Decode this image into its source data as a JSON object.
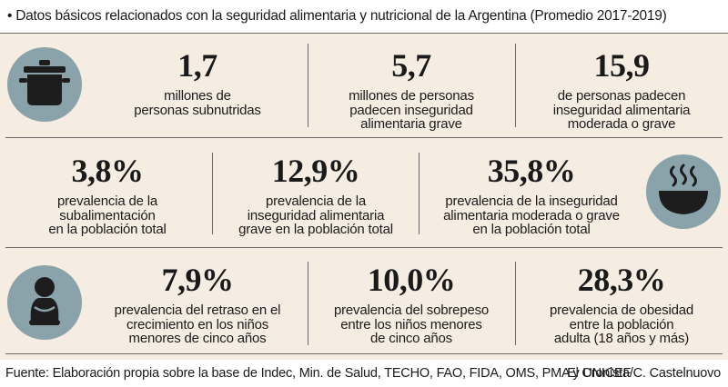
{
  "header": {
    "title": "• Datos básicos relacionados con la seguridad alimentaria y nutricional de la Argentina (Promedio 2017-2019)"
  },
  "icons": {
    "row1": "cooking-pot-icon",
    "row2": "steaming-bowl-icon",
    "row3": "sitting-child-icon",
    "circle_color": "#8aa3ab",
    "background_color": "#f6ede2"
  },
  "stats": [
    {
      "value": "1,7",
      "lines": [
        "millones de",
        "personas subnutridas"
      ]
    },
    {
      "value": "5,7",
      "lines": [
        "millones de personas",
        "padecen inseguridad",
        "alimentaria grave"
      ]
    },
    {
      "value": "15,9",
      "lines": [
        "de personas padecen",
        "inseguridad alimentaria",
        "moderada o grave"
      ]
    },
    {
      "value": "3,8%",
      "lines": [
        "prevalencia de la",
        "subalimentación",
        "en la población total"
      ]
    },
    {
      "value": "12,9%",
      "lines": [
        "prevalencia de la",
        "inseguridad alimentaria",
        "grave en la población total"
      ]
    },
    {
      "value": "35,8%",
      "lines": [
        "prevalencia de la inseguridad",
        "alimentaria moderada o grave",
        "en la población total"
      ]
    },
    {
      "value": "7,9%",
      "lines": [
        "prevalencia del retraso en el",
        "crecimiento en los niños",
        "menores de cinco años"
      ]
    },
    {
      "value": "10,0%",
      "lines": [
        "prevalencia del sobrepeso",
        "entre los niños menores",
        "de cinco años"
      ]
    },
    {
      "value": "28,3%",
      "lines": [
        "prevalencia de obesidad",
        "entre la población",
        "adulta (18 años y más)"
      ]
    }
  ],
  "footer": {
    "source": "Fuente: Elaboración propia sobre la base de Indec, Min. de Salud, TECHO, FAO, FIDA, OMS, PMA y UNICEF",
    "credit": "El Cronista/C. Castelnuovo"
  }
}
